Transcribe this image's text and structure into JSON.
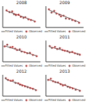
{
  "chart_data": [
    {
      "type": "scatter",
      "title": "2008",
      "xlim": [
        0,
        100
      ],
      "ylim": [
        0,
        100
      ],
      "tick_labels": false,
      "series": [
        {
          "name": "Fitted Values",
          "type": "line",
          "color": "#555555",
          "line_style": "solid",
          "x": [
            10,
            85
          ],
          "values": [
            78,
            30
          ]
        },
        {
          "name": "Observed",
          "type": "scatter",
          "color": "#b03a3a",
          "marker": "circle",
          "x": [
            10,
            18,
            25,
            30,
            35,
            42,
            48,
            55,
            60,
            68,
            75,
            85
          ],
          "values": [
            80,
            72,
            75,
            62,
            58,
            60,
            50,
            45,
            48,
            38,
            35,
            28
          ]
        }
      ]
    },
    {
      "type": "scatter",
      "title": "2009",
      "xlim": [
        0,
        100
      ],
      "ylim": [
        0,
        100
      ],
      "tick_labels": false,
      "series": [
        {
          "name": "Fitted Values",
          "type": "line",
          "color": "#555555",
          "line_style": "solid",
          "x": [
            8,
            88
          ],
          "values": [
            82,
            25
          ]
        },
        {
          "name": "Observed",
          "type": "scatter",
          "color": "#b03a3a",
          "marker": "circle",
          "x": [
            8,
            15,
            22,
            28,
            36,
            40,
            47,
            53,
            62,
            70,
            78,
            88
          ],
          "values": [
            85,
            70,
            78,
            65,
            60,
            52,
            55,
            42,
            40,
            35,
            30,
            22
          ]
        }
      ]
    },
    {
      "type": "scatter",
      "title": "2010",
      "xlim": [
        0,
        100
      ],
      "ylim": [
        0,
        100
      ],
      "tick_labels": false,
      "series": [
        {
          "name": "Fitted Values",
          "type": "line",
          "color": "#555555",
          "line_style": "solid",
          "x": [
            5,
            90
          ],
          "values": [
            75,
            28
          ]
        },
        {
          "name": "Observed",
          "type": "scatter",
          "color": "#b03a3a",
          "marker": "circle",
          "x": [
            5,
            12,
            20,
            26,
            33,
            38,
            45,
            50,
            58,
            65,
            72,
            80,
            90
          ],
          "values": [
            72,
            80,
            68,
            70,
            62,
            55,
            58,
            48,
            45,
            40,
            42,
            32,
            26
          ]
        }
      ]
    },
    {
      "type": "scatter",
      "title": "2011",
      "xlim": [
        0,
        100
      ],
      "ylim": [
        0,
        100
      ],
      "tick_labels": false,
      "series": [
        {
          "name": "Fitted Values",
          "type": "line",
          "color": "#555555",
          "line_style": "solid",
          "x": [
            10,
            90
          ],
          "values": [
            70,
            35
          ]
        },
        {
          "name": "Observed",
          "type": "scatter",
          "color": "#b03a3a",
          "marker": "circle",
          "x": [
            10,
            16,
            24,
            30,
            37,
            44,
            50,
            57,
            63,
            70,
            77,
            84,
            90
          ],
          "values": [
            74,
            65,
            70,
            60,
            64,
            55,
            52,
            50,
            44,
            46,
            40,
            36,
            33
          ]
        }
      ]
    },
    {
      "type": "scatter",
      "title": "2012",
      "xlim": [
        0,
        100
      ],
      "ylim": [
        0,
        100
      ],
      "tick_labels": false,
      "series": [
        {
          "name": "Fitted Values",
          "type": "line",
          "color": "#555555",
          "line_style": "solid",
          "x": [
            8,
            88
          ],
          "values": [
            80,
            30
          ]
        },
        {
          "name": "Observed",
          "type": "scatter",
          "color": "#b03a3a",
          "marker": "circle",
          "x": [
            8,
            14,
            21,
            27,
            34,
            41,
            46,
            52,
            59,
            66,
            73,
            80,
            88
          ],
          "values": [
            84,
            76,
            72,
            74,
            62,
            60,
            54,
            50,
            46,
            42,
            38,
            34,
            28
          ]
        }
      ]
    },
    {
      "type": "scatter",
      "title": "2013",
      "xlim": [
        0,
        100
      ],
      "ylim": [
        0,
        100
      ],
      "tick_labels": false,
      "series": [
        {
          "name": "Fitted Values",
          "type": "line",
          "color": "#555555",
          "line_style": "solid",
          "x": [
            6,
            90
          ],
          "values": [
            78,
            27
          ]
        },
        {
          "name": "Observed",
          "type": "scatter",
          "color": "#b03a3a",
          "marker": "circle",
          "x": [
            6,
            13,
            19,
            25,
            32,
            39,
            45,
            51,
            58,
            64,
            71,
            79,
            90
          ],
          "values": [
            76,
            82,
            70,
            66,
            64,
            56,
            50,
            52,
            44,
            40,
            36,
            30,
            25
          ]
        }
      ]
    }
  ]
}
